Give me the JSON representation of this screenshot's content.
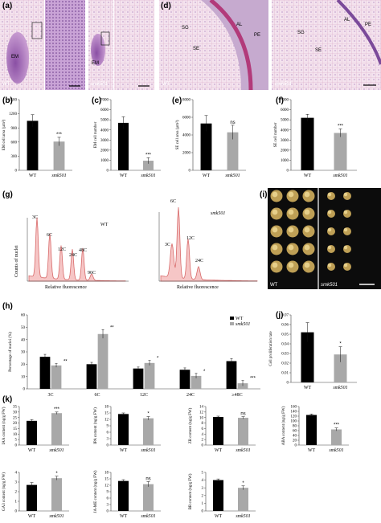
{
  "colors": {
    "wt": "#000000",
    "smk501": "#a8a8a8",
    "he_pink": "#e9b6d2",
    "he_purple": "#7a4a9a",
    "fcm_fill": "#f6c6c6",
    "fcm_line": "#d86b6b",
    "callus": "#c8a85a"
  },
  "panels": {
    "a": {
      "label": "(a)",
      "labels": [
        "EM",
        "WT",
        "EM",
        "smk501"
      ]
    },
    "d": {
      "label": "(d)",
      "labels": [
        "AL",
        "PE",
        "SG",
        "SE",
        "WT",
        "AL",
        "PE",
        "SG",
        "SE",
        "smk501"
      ]
    },
    "i": {
      "label": "(i)",
      "labels": [
        "WT",
        "smk501"
      ]
    },
    "g": {
      "label": "(g)",
      "wt": {
        "title": "WT",
        "peaks": [
          "3C",
          "6C",
          "12C",
          "24C",
          "48C",
          "96C"
        ]
      },
      "mut": {
        "title": "smk501",
        "peaks": [
          "3C",
          "6C",
          "12C",
          "24C"
        ]
      },
      "xlabel": "Relative fluorescence",
      "ylabel": "Counts of nuclei"
    }
  },
  "chart_data": [
    {
      "id": "b",
      "label": "(b)",
      "type": "bar",
      "categories": [
        "WT",
        "smk501"
      ],
      "values": [
        1050,
        610
      ],
      "errors": [
        130,
        90
      ],
      "ylabel": "EM cell area (µm²)",
      "ylim": [
        0,
        1500
      ],
      "yticks": [
        0,
        300,
        600,
        900,
        1200,
        1500
      ],
      "sig": [
        "",
        "***"
      ]
    },
    {
      "id": "c",
      "label": "(c)",
      "type": "bar",
      "categories": [
        "WT",
        "smk501"
      ],
      "values": [
        4700,
        950
      ],
      "errors": [
        600,
        300
      ],
      "ylabel": "EM cell number",
      "ylim": [
        0,
        7000
      ],
      "yticks": [
        0,
        1000,
        2000,
        3000,
        4000,
        5000,
        6000,
        7000
      ],
      "sig": [
        "",
        "***"
      ]
    },
    {
      "id": "e",
      "label": "(e)",
      "type": "bar",
      "categories": [
        "WT",
        "smk501"
      ],
      "values": [
        5300,
        4300
      ],
      "errors": [
        900,
        800
      ],
      "ylabel": "SE cell area (µm²)",
      "ylim": [
        0,
        8000
      ],
      "yticks": [
        0,
        2000,
        4000,
        6000,
        8000
      ],
      "sig": [
        "",
        "ns"
      ]
    },
    {
      "id": "f",
      "label": "(f)",
      "type": "bar",
      "categories": [
        "WT",
        "smk501"
      ],
      "values": [
        5200,
        3700
      ],
      "errors": [
        350,
        400
      ],
      "ylabel": "SE cell number",
      "ylim": [
        0,
        7000
      ],
      "yticks": [
        0,
        1000,
        2000,
        3000,
        4000,
        5000,
        6000,
        7000
      ],
      "sig": [
        "",
        "***"
      ]
    },
    {
      "id": "h",
      "label": "(h)",
      "type": "bar",
      "categories": [
        "3C",
        "6C",
        "12C",
        "24C",
        "≥48C"
      ],
      "series": [
        {
          "name": "WT",
          "values": [
            26,
            20,
            16.5,
            15.5,
            22.5
          ],
          "errors": [
            2,
            1.5,
            1.2,
            1.5,
            2
          ]
        },
        {
          "name": "smk501",
          "values": [
            19,
            44.5,
            21,
            10.5,
            4.5
          ],
          "errors": [
            1.5,
            3.5,
            2,
            2,
            2.2
          ]
        }
      ],
      "ylabel": "Percentage of nuclei (%)",
      "ylim": [
        0,
        60
      ],
      "yticks": [
        0,
        10,
        20,
        30,
        40,
        50,
        60
      ],
      "sig": [
        "**",
        "**",
        "*",
        "*",
        "***"
      ],
      "legend": "top-right"
    },
    {
      "id": "j",
      "label": "(j)",
      "type": "bar",
      "categories": [
        "WT",
        "smk501"
      ],
      "values": [
        0.052,
        0.029
      ],
      "errors": [
        0.01,
        0.008
      ],
      "ylabel": "Cell proliferation rate",
      "ylim": [
        0,
        0.07
      ],
      "yticks": [
        0,
        0.01,
        0.02,
        0.03,
        0.04,
        0.05,
        0.06,
        0.07
      ],
      "sig": [
        "",
        "*"
      ]
    },
    {
      "id": "k1",
      "label": "(k)",
      "type": "bar",
      "categories": [
        "WT",
        "smk501"
      ],
      "values": [
        22,
        29
      ],
      "errors": [
        1.2,
        1.0
      ],
      "ylabel": "IAA content (ng/g FW)",
      "ylim": [
        0,
        35
      ],
      "yticks": [
        0,
        5,
        10,
        15,
        20,
        25,
        30,
        35
      ],
      "sig": [
        "",
        "***"
      ]
    },
    {
      "id": "k2",
      "type": "bar",
      "categories": [
        "WT",
        "smk501"
      ],
      "values": [
        14.5,
        12.5
      ],
      "errors": [
        0.5,
        0.8
      ],
      "ylabel": "IPA content (ng/g FW)",
      "ylim": [
        0,
        18
      ],
      "yticks": [
        0,
        3,
        6,
        9,
        12,
        15,
        18
      ],
      "sig": [
        "",
        "*"
      ]
    },
    {
      "id": "k3",
      "type": "bar",
      "categories": [
        "WT",
        "smk501"
      ],
      "values": [
        10.2,
        9.9
      ],
      "errors": [
        0.3,
        0.4
      ],
      "ylabel": "ZR content (ng/g FW)",
      "ylim": [
        0,
        14
      ],
      "yticks": [
        0,
        2,
        4,
        6,
        8,
        10,
        12,
        14
      ],
      "sig": [
        "",
        "ns"
      ]
    },
    {
      "id": "k4",
      "type": "bar",
      "categories": [
        "WT",
        "smk501"
      ],
      "values": [
        125,
        65
      ],
      "errors": [
        4,
        6
      ],
      "ylabel": "ABA content (ng/g FW)",
      "ylim": [
        0,
        160
      ],
      "yticks": [
        0,
        20,
        40,
        60,
        80,
        100,
        120,
        140,
        160
      ],
      "sig": [
        "",
        "***"
      ]
    },
    {
      "id": "k5",
      "type": "bar",
      "categories": [
        "WT",
        "smk501"
      ],
      "values": [
        2.7,
        3.4
      ],
      "errors": [
        0.25,
        0.2
      ],
      "ylabel": "GA3 content (ng/g FW)",
      "ylim": [
        0,
        4
      ],
      "yticks": [
        0,
        1,
        2,
        3,
        4
      ],
      "sig": [
        "",
        "*"
      ]
    },
    {
      "id": "k6",
      "type": "bar",
      "categories": [
        "WT",
        "smk501"
      ],
      "values": [
        14,
        12.5
      ],
      "errors": [
        0.6,
        1.2
      ],
      "ylabel": "JA-ME content (ng/g FW)",
      "ylim": [
        0,
        18
      ],
      "yticks": [
        0,
        3,
        6,
        9,
        12,
        15,
        18
      ],
      "sig": [
        "",
        "ns"
      ]
    },
    {
      "id": "k7",
      "type": "bar",
      "categories": [
        "WT",
        "smk501"
      ],
      "values": [
        4.0,
        3.0
      ],
      "errors": [
        0.15,
        0.25
      ],
      "ylabel": "BR content (ng/g FW)",
      "ylim": [
        0,
        5
      ],
      "yticks": [
        0,
        1,
        2,
        3,
        4,
        5
      ],
      "sig": [
        "",
        "*"
      ]
    }
  ]
}
